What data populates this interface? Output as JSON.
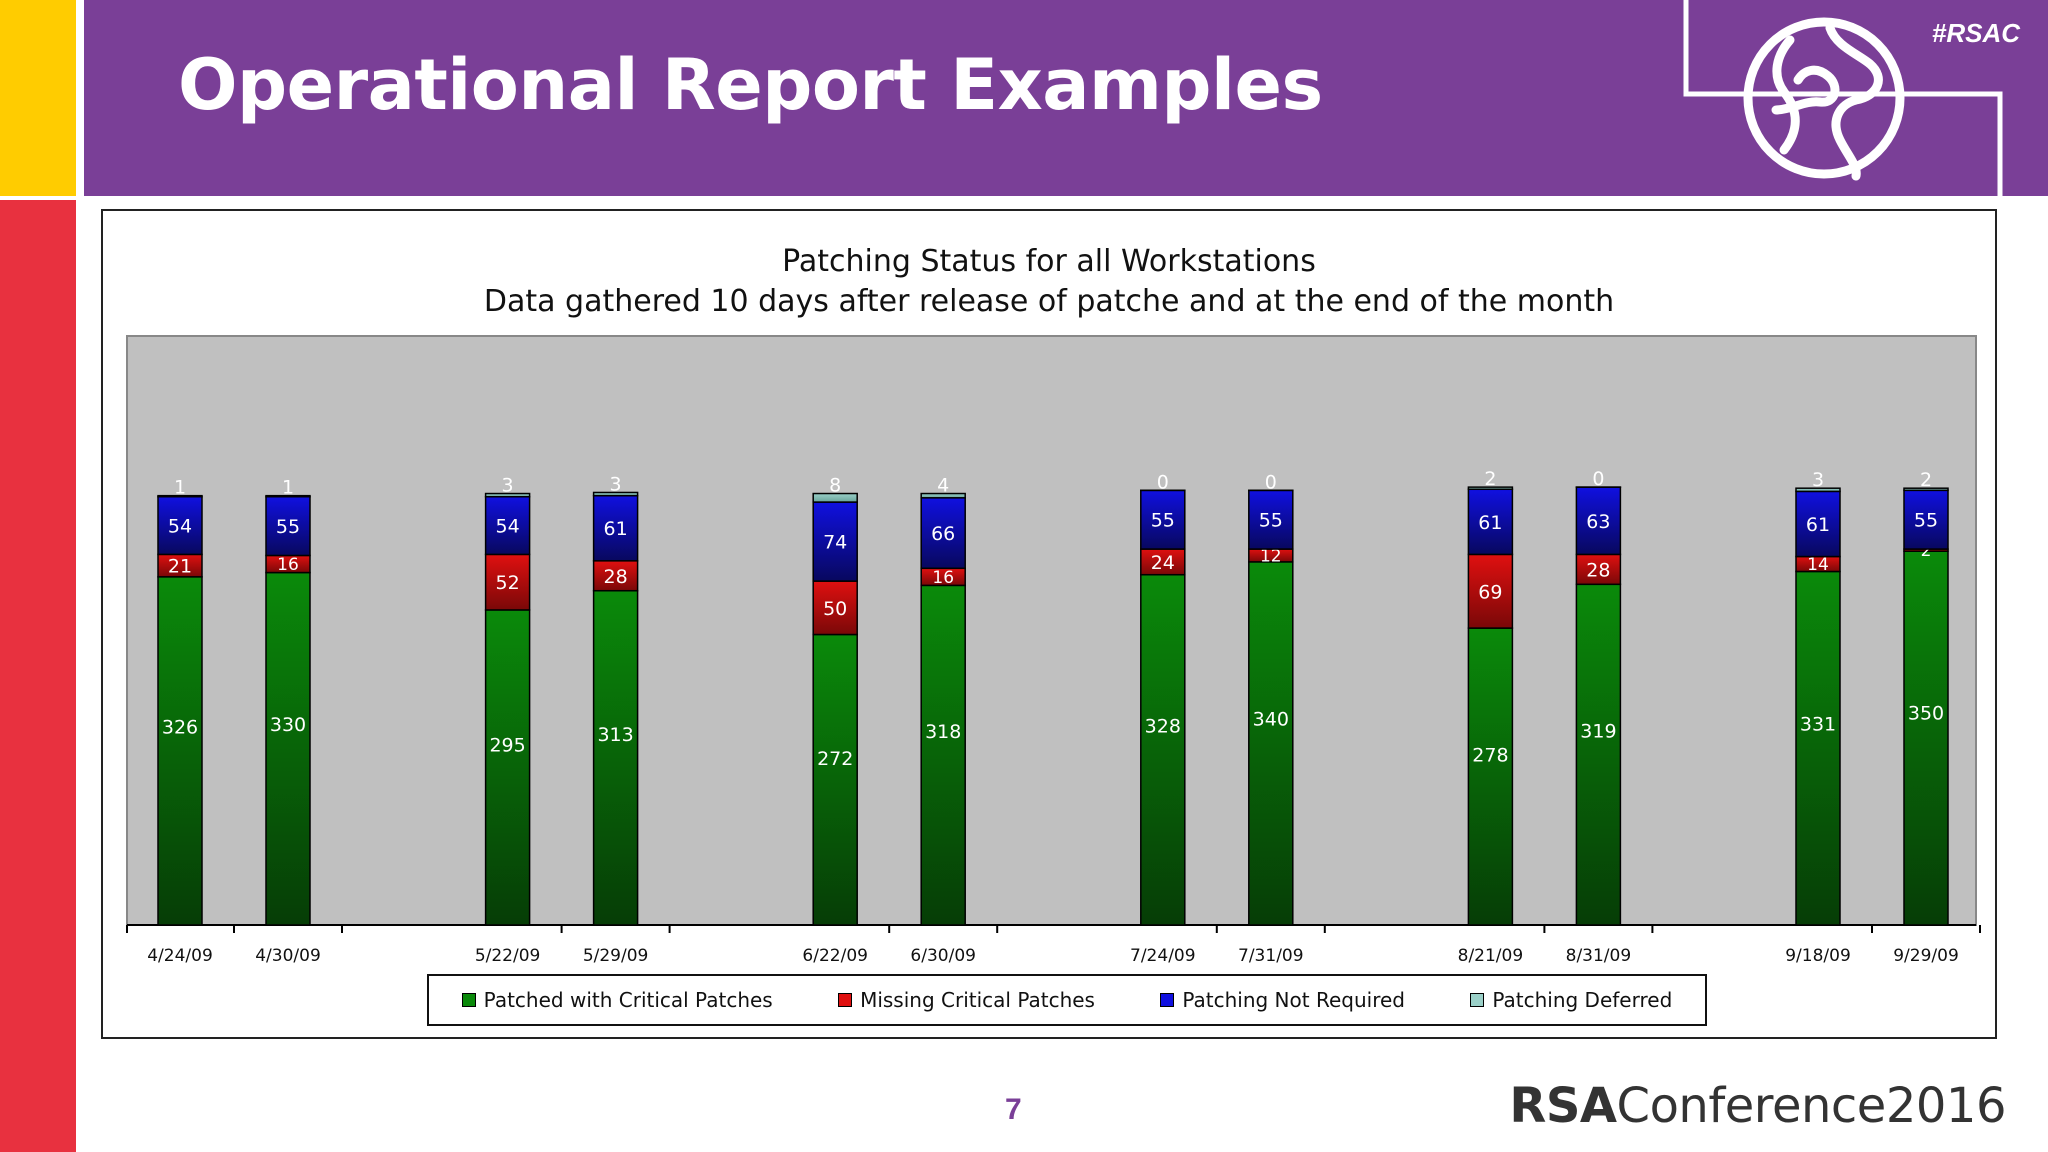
{
  "slide": {
    "title": "Operational Report Examples",
    "hashtag": "#RSAC",
    "page_number": "7",
    "brand_bold": "RSA",
    "brand_rest": "Conference2016",
    "colors": {
      "header": "#7a3f97",
      "left_yellow": "#ffcc00",
      "left_red": "#e8313f"
    }
  },
  "chart_data": {
    "type": "bar",
    "stacked": true,
    "title": "Patching Status for all Workstations",
    "subtitle": "Data gathered 10 days after release of patche and at the end of the month",
    "xlabel": "",
    "ylabel": "",
    "ylim": [
      0,
      540
    ],
    "grid": false,
    "legend_position": "bottom",
    "categories": [
      "4/24/09",
      "4/30/09",
      "5/22/09",
      "5/29/09",
      "6/22/09",
      "6/30/09",
      "7/24/09",
      "7/31/09",
      "8/21/09",
      "8/31/09",
      "9/18/09",
      "9/29/09"
    ],
    "series": [
      {
        "name": "Patched with Critical Patches",
        "color": "#0a8a0a",
        "values": [
          326,
          330,
          295,
          313,
          272,
          318,
          328,
          340,
          278,
          319,
          331,
          350
        ]
      },
      {
        "name": "Missing Critical Patches",
        "color": "#e01010",
        "values": [
          21,
          16,
          52,
          28,
          50,
          16,
          24,
          12,
          69,
          28,
          14,
          2
        ]
      },
      {
        "name": "Patching Not Required",
        "color": "#1010e0",
        "values": [
          54,
          55,
          54,
          61,
          74,
          66,
          55,
          55,
          61,
          63,
          61,
          55
        ]
      },
      {
        "name": "Patching Deferred",
        "color": "#9ad0c8",
        "values": [
          1,
          1,
          3,
          3,
          8,
          4,
          0,
          0,
          2,
          0,
          3,
          2
        ]
      }
    ]
  }
}
